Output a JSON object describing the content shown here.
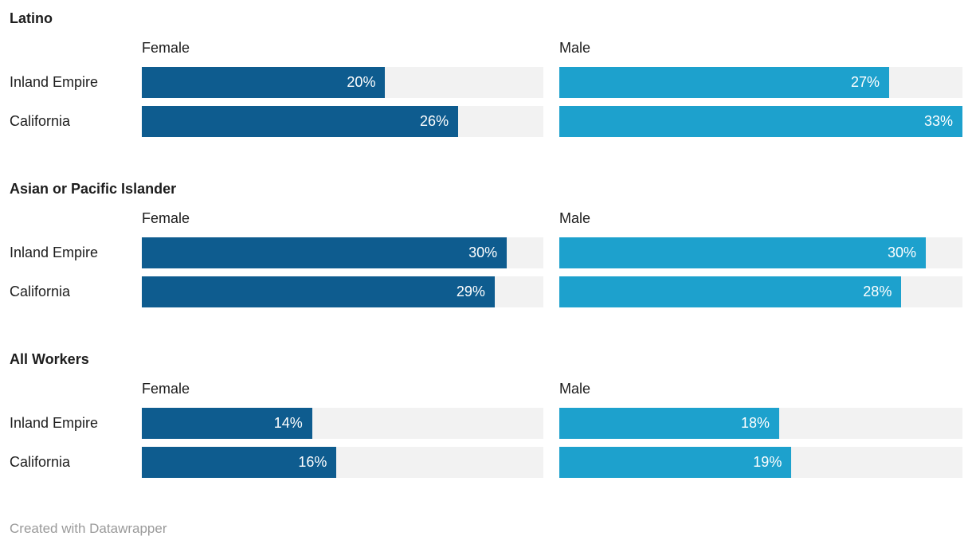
{
  "colors": {
    "female": "#0e5c8f",
    "male": "#1da1cd",
    "track": "#f2f2f2",
    "text": "#1d1d1d",
    "muted": "#9a9a9a"
  },
  "chart_data": {
    "type": "bar",
    "subtype": "split-bars",
    "unit": "%",
    "scale_max": 33,
    "grid": "off",
    "columns": [
      "Female",
      "Male"
    ],
    "groups": [
      {
        "title": "Latino",
        "rows": [
          {
            "label": "Inland Empire",
            "female": {
              "value": 20,
              "label": "20%"
            },
            "male": {
              "value": 27,
              "label": "27%"
            }
          },
          {
            "label": "California",
            "female": {
              "value": 26,
              "label": "26%"
            },
            "male": {
              "value": 33,
              "label": "33%"
            }
          }
        ]
      },
      {
        "title": "Asian or Pacific Islander",
        "rows": [
          {
            "label": "Inland Empire",
            "female": {
              "value": 30,
              "label": "30%"
            },
            "male": {
              "value": 30,
              "label": "30%"
            }
          },
          {
            "label": "California",
            "female": {
              "value": 29,
              "label": "29%"
            },
            "male": {
              "value": 28,
              "label": "28%"
            }
          }
        ]
      },
      {
        "title": "All Workers",
        "rows": [
          {
            "label": "Inland Empire",
            "female": {
              "value": 14,
              "label": "14%"
            },
            "male": {
              "value": 18,
              "label": "18%"
            }
          },
          {
            "label": "California",
            "female": {
              "value": 16,
              "label": "16%"
            },
            "male": {
              "value": 19,
              "label": "19%"
            }
          }
        ]
      }
    ]
  },
  "footer": {
    "credit": "Created with Datawrapper"
  }
}
